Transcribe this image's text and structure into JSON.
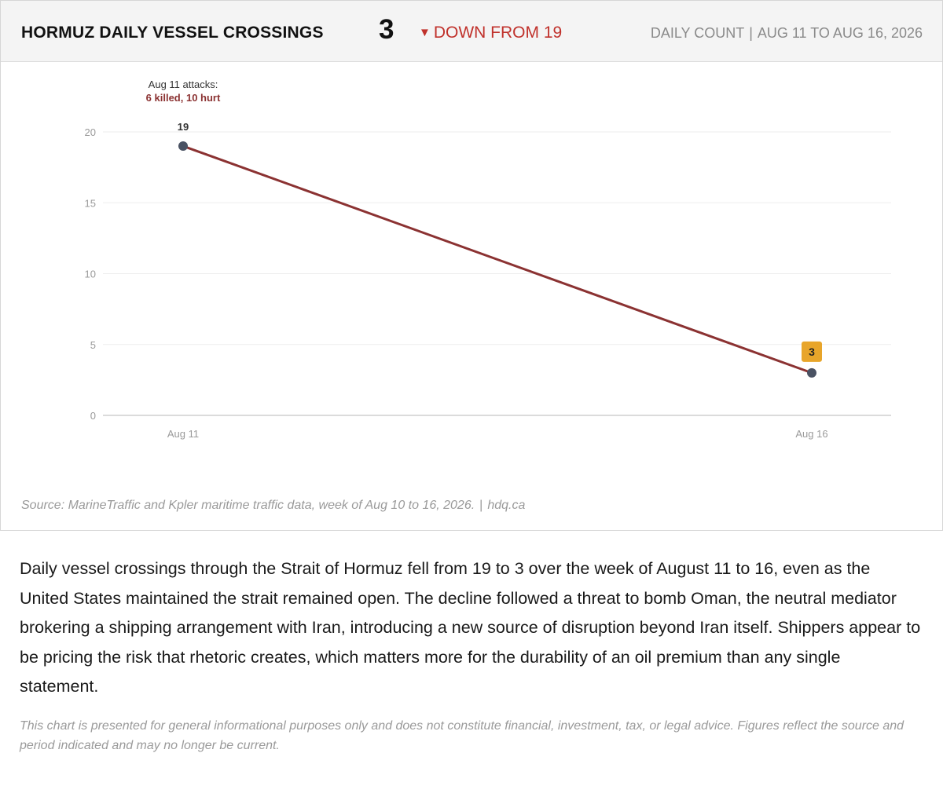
{
  "header": {
    "title": "HORMUZ DAILY VESSEL CROSSINGS",
    "current_value": "3",
    "change_arrow": "▼",
    "change_text": "DOWN FROM 19",
    "meta_label": "DAILY COUNT",
    "meta_separator": "|",
    "meta_range": "AUG 11 TO AUG 16, 2026"
  },
  "annotation": {
    "line1": "Aug 11 attacks:",
    "line2": "6 killed, 10 hurt"
  },
  "chart_data": {
    "type": "line",
    "title": "HORMUZ DAILY VESSEL CROSSINGS",
    "xlabel": "",
    "ylabel": "",
    "ylim": [
      0,
      20
    ],
    "yticks": [
      0,
      5,
      10,
      15,
      20
    ],
    "grid": true,
    "categories": [
      "Aug 11",
      "Aug 16"
    ],
    "series": [
      {
        "values": [
          19,
          3
        ],
        "data_labels": [
          "19",
          "3"
        ]
      }
    ],
    "colors": {
      "line": "#8b3232",
      "point": "#4a5263",
      "highlight_badge": "#e8a52a",
      "annotation_emphasis": "#8b3232",
      "change_down": "#c0312b"
    }
  },
  "footer": {
    "source": "Source: MarineTraffic and Kpler maritime traffic data, week of Aug 10 to 16, 2026.",
    "separator": "|",
    "site": "hdq.ca"
  },
  "body_text": "Daily vessel crossings through the Strait of Hormuz fell from 19 to 3 over the week of August 11 to 16, even as the United States maintained the strait remained open. The decline followed a threat to bomb Oman, the neutral mediator brokering a shipping arrangement with Iran, introducing a new source of disruption beyond Iran itself. Shippers appear to be pricing the risk that rhetoric creates, which matters more for the durability of an oil premium than any single statement.",
  "disclaimer": "This chart is presented for general informational purposes only and does not constitute financial, investment, tax, or legal advice. Figures reflect the source and period indicated and may no longer be current."
}
